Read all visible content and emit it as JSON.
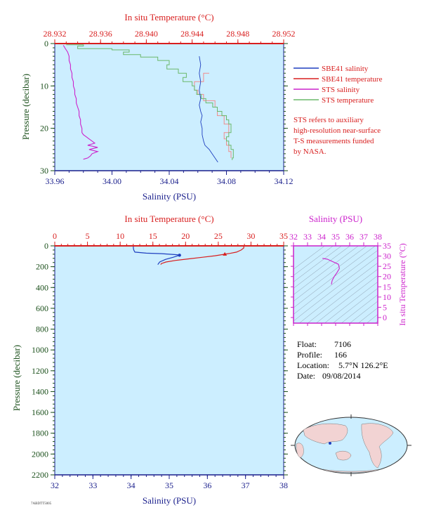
{
  "colors": {
    "blue": "#1f3fbf",
    "red": "#d81e1e",
    "magenta": "#cc22cc",
    "green": "#6ab86a",
    "pink": "#f08c8c",
    "navy": "#1a1f8c",
    "dkgreen": "#1a4f1a",
    "plotbg": "#cceeff"
  },
  "chart_data": [
    {
      "type": "line",
      "title": "",
      "top_axis_label": "In situ Temperature (°C)",
      "top_ticks": [
        "28.932",
        "28.936",
        "28.940",
        "28.944",
        "28.948",
        "28.952"
      ],
      "top_range": [
        28.932,
        28.952
      ],
      "bottom_axis_label": "Salinity (PSU)",
      "bottom_ticks": [
        "33.96",
        "34.00",
        "34.04",
        "34.08",
        "34.12"
      ],
      "bottom_range": [
        33.96,
        34.12
      ],
      "ylabel": "Pressure (decibar)",
      "y_ticks": [
        "0",
        "10",
        "20",
        "30"
      ],
      "y_range": [
        0,
        30
      ],
      "legend": [
        {
          "label": "SBE41 salinity",
          "color": "#1f3fbf"
        },
        {
          "label": "SBE41 temperature",
          "color": "#d81e1e"
        },
        {
          "label": "STS salinity",
          "color": "#cc22cc"
        },
        {
          "label": "STS temperature",
          "color": "#6ab86a"
        }
      ],
      "note_lines": [
        "STS refers to auxiliary",
        "high-resolution near-surface",
        "T-S measurements funded",
        "by NASA."
      ],
      "series": [
        {
          "name": "SBE41 salinity",
          "axis": "salinity",
          "points": [
            [
              34.061,
              3.0
            ],
            [
              34.062,
              5.0
            ],
            [
              34.061,
              7.0
            ],
            [
              34.062,
              9.0
            ],
            [
              34.061,
              11.0
            ],
            [
              34.062,
              13.0
            ],
            [
              34.061,
              14.5
            ],
            [
              34.062,
              16.0
            ],
            [
              34.063,
              17.0
            ],
            [
              34.062,
              18.5
            ],
            [
              34.063,
              20.0
            ],
            [
              34.063,
              21.5
            ],
            [
              34.064,
              23.0
            ],
            [
              34.065,
              24.0
            ],
            [
              34.068,
              25.0
            ],
            [
              34.07,
              26.0
            ],
            [
              34.072,
              27.0
            ],
            [
              34.074,
              28.0
            ]
          ]
        },
        {
          "name": "SBE41 temperature",
          "axis": "temperature",
          "points": [
            [
              28.9455,
              7.0
            ],
            [
              28.945,
              9.0
            ],
            [
              28.9442,
              11.0
            ],
            [
              28.9445,
              12.0
            ],
            [
              28.945,
              13.5
            ],
            [
              28.946,
              15.0
            ],
            [
              28.9462,
              17.0
            ],
            [
              28.9468,
              19.0
            ],
            [
              28.9472,
              21.0
            ],
            [
              28.9468,
              22.5
            ],
            [
              28.947,
              24.0
            ],
            [
              28.9472,
              25.5
            ],
            [
              28.9474,
              27.0
            ]
          ]
        },
        {
          "name": "STS salinity",
          "axis": "salinity",
          "points": [
            [
              33.966,
              0.4
            ],
            [
              33.967,
              1.0
            ],
            [
              33.969,
              2.0
            ],
            [
              33.97,
              3.0
            ],
            [
              33.97,
              4.0
            ],
            [
              33.971,
              5.0
            ],
            [
              33.971,
              6.0
            ],
            [
              33.972,
              7.0
            ],
            [
              33.972,
              8.0
            ],
            [
              33.973,
              9.0
            ],
            [
              33.973,
              10.0
            ],
            [
              33.974,
              11.0
            ],
            [
              33.974,
              12.0
            ],
            [
              33.975,
              13.0
            ],
            [
              33.975,
              14.0
            ],
            [
              33.976,
              15.0
            ],
            [
              33.977,
              16.0
            ],
            [
              33.977,
              17.0
            ],
            [
              33.978,
              18.0
            ],
            [
              33.978,
              19.0
            ],
            [
              33.979,
              20.0
            ],
            [
              33.979,
              21.0
            ],
            [
              33.98,
              21.5
            ],
            [
              33.982,
              22.0
            ],
            [
              33.984,
              22.5
            ],
            [
              33.986,
              23.0
            ],
            [
              33.988,
              23.5
            ],
            [
              33.983,
              24.0
            ],
            [
              33.99,
              24.5
            ],
            [
              33.984,
              25.0
            ],
            [
              33.99,
              25.5
            ],
            [
              33.986,
              26.0
            ],
            [
              33.985,
              26.5
            ],
            [
              33.983,
              27.0
            ],
            [
              33.98,
              27.3
            ]
          ]
        },
        {
          "name": "STS temperature",
          "axis": "temperature",
          "points": [
            [
              28.933,
              0.3
            ],
            [
              28.9345,
              0.6
            ],
            [
              28.934,
              1.2
            ],
            [
              28.937,
              1.5
            ],
            [
              28.9385,
              2.0
            ],
            [
              28.938,
              2.6
            ],
            [
              28.9395,
              3.2
            ],
            [
              28.941,
              4.0
            ],
            [
              28.942,
              5.0
            ],
            [
              28.9418,
              6.0
            ],
            [
              28.9428,
              7.0
            ],
            [
              28.9435,
              8.0
            ],
            [
              28.9432,
              9.0
            ],
            [
              28.944,
              10.0
            ],
            [
              28.9442,
              11.0
            ],
            [
              28.9444,
              12.0
            ],
            [
              28.9448,
              13.0
            ],
            [
              28.9452,
              14.0
            ],
            [
              28.9458,
              15.0
            ],
            [
              28.9462,
              16.0
            ],
            [
              28.9466,
              17.0
            ],
            [
              28.947,
              18.0
            ],
            [
              28.9472,
              19.0
            ],
            [
              28.9474,
              20.0
            ],
            [
              28.9474,
              21.0
            ],
            [
              28.9472,
              22.0
            ],
            [
              28.947,
              23.0
            ],
            [
              28.9472,
              24.0
            ],
            [
              28.9474,
              25.0
            ],
            [
              28.9476,
              26.0
            ],
            [
              28.9476,
              27.0
            ],
            [
              28.9475,
              27.5
            ]
          ]
        }
      ]
    },
    {
      "type": "line",
      "title": "",
      "top_axis_label": "In situ Temperature (°C)",
      "top_ticks": [
        "0",
        "5",
        "10",
        "15",
        "20",
        "25",
        "30",
        "35"
      ],
      "top_range": [
        0,
        35
      ],
      "bottom_axis_label": "Salinity (PSU)",
      "bottom_ticks": [
        "32",
        "33",
        "34",
        "35",
        "36",
        "37",
        "38"
      ],
      "bottom_range": [
        32,
        38
      ],
      "ylabel": "Pressure (decibar)",
      "y_ticks": [
        "0",
        "200",
        "400",
        "600",
        "800",
        "1000",
        "1200",
        "1400",
        "1600",
        "1800",
        "2000",
        "2200"
      ],
      "y_range": [
        0,
        2200
      ],
      "series": [
        {
          "name": "salinity",
          "axis": "salinity",
          "marker": [
            35.27,
            90
          ],
          "points": [
            [
              34.06,
              0
            ],
            [
              34.06,
              20
            ],
            [
              34.07,
              40
            ],
            [
              34.1,
              60
            ],
            [
              34.4,
              70
            ],
            [
              34.8,
              75
            ],
            [
              35.2,
              85
            ],
            [
              35.27,
              90
            ],
            [
              35.1,
              110
            ],
            [
              34.9,
              130
            ],
            [
              34.75,
              155
            ],
            [
              34.7,
              180
            ]
          ]
        },
        {
          "name": "temperature",
          "axis": "temperature",
          "marker": [
            26.0,
            80
          ],
          "points": [
            [
              28.9,
              0
            ],
            [
              28.9,
              20
            ],
            [
              28.5,
              40
            ],
            [
              27.8,
              60
            ],
            [
              26.8,
              72
            ],
            [
              26.0,
              80
            ],
            [
              24.5,
              95
            ],
            [
              22.5,
              110
            ],
            [
              20.5,
              125
            ],
            [
              18.5,
              140
            ],
            [
              17.0,
              155
            ],
            [
              16.3,
              170
            ],
            [
              16.2,
              180
            ]
          ]
        }
      ],
      "info": {
        "float_label": "Float:",
        "float_value": "7106",
        "profile_label": "Profile:",
        "profile_value": "166",
        "location_label": "Location:",
        "location_value": "5.7°N  126.2°E",
        "date_label": "Date:",
        "date_value": "09/08/2014"
      },
      "footer_code": "7ABDTT5005"
    },
    {
      "type": "line",
      "top_axis_label": "Salinity (PSU)",
      "top_ticks": [
        "32",
        "33",
        "34",
        "35",
        "36",
        "37",
        "38"
      ],
      "top_range": [
        32,
        38
      ],
      "right_axis_label": "In situ Temperature (°C)",
      "right_ticks": [
        "0",
        "5",
        "10",
        "15",
        "20",
        "25",
        "30",
        "35"
      ],
      "right_range": [
        0,
        35
      ],
      "series": [
        {
          "name": "T-S",
          "points": [
            [
              34.06,
              28.9
            ],
            [
              34.4,
              28.5
            ],
            [
              35.2,
              26.0
            ],
            [
              35.27,
              24.0
            ],
            [
              35.1,
              22.0
            ],
            [
              34.9,
              20.0
            ],
            [
              34.75,
              18.0
            ],
            [
              34.7,
              16.2
            ]
          ]
        }
      ]
    }
  ]
}
